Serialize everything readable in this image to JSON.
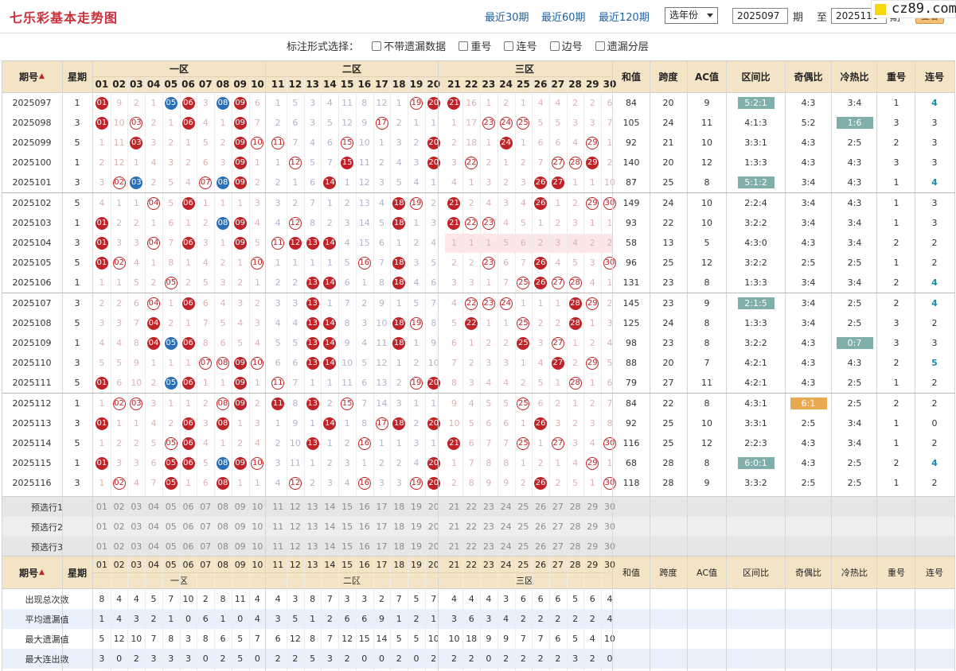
{
  "header": {
    "title": "七乐彩基本走势图",
    "links": [
      "最近30期",
      "最近60期",
      "最近120期"
    ],
    "year_select": "选年份",
    "start": "2025097",
    "mid": "期",
    "to": "至",
    "end": "2025116",
    "end_suffix": "期",
    "query": "查看",
    "watermark": "cz89.com"
  },
  "options": {
    "label": "标注形式选择：",
    "items": [
      "不带遗漏数据",
      "重号",
      "连号",
      "边号",
      "遗漏分层"
    ]
  },
  "table": {
    "head": {
      "period": "期号",
      "week": "星期",
      "zone1": "一区",
      "zone2": "二区",
      "zone3": "三区",
      "cols": [
        "和值",
        "跨度",
        "AC值",
        "区间比",
        "奇偶比",
        "冷热比",
        "重号",
        "连号"
      ]
    },
    "numbers": [
      "01",
      "02",
      "03",
      "04",
      "05",
      "06",
      "07",
      "08",
      "09",
      "10",
      "11",
      "12",
      "13",
      "14",
      "15",
      "16",
      "17",
      "18",
      "19",
      "20",
      "21",
      "22",
      "23",
      "24",
      "25",
      "26",
      "27",
      "28",
      "29",
      "30"
    ],
    "rows": [
      {
        "period": "2025097",
        "week": "1",
        "cells": [
          "01",
          "9",
          "2",
          "1",
          "05",
          "06",
          "3",
          "08",
          "09",
          "6",
          "1",
          "5",
          "3",
          "4",
          "11",
          "8",
          "12",
          "1",
          "19",
          "20",
          "21",
          "16",
          "1",
          "2",
          "1",
          "4",
          "4",
          "2",
          "2",
          "6"
        ],
        "stats": [
          "84",
          "20",
          "9",
          "5:2:1",
          "4:3",
          "3:4",
          "1",
          "4"
        ],
        "hi": {
          "3": "g"
        }
      },
      {
        "period": "2025098",
        "week": "3",
        "cells": [
          "01",
          "10",
          "03",
          "2",
          "1",
          "06",
          "4",
          "1",
          "09",
          "7",
          "2",
          "6",
          "3",
          "5",
          "12",
          "9",
          "17",
          "2",
          "1",
          "1",
          "1",
          "17",
          "23",
          "24",
          "25",
          "5",
          "5",
          "3",
          "3",
          "7"
        ],
        "stats": [
          "105",
          "24",
          "11",
          "4:1:3",
          "5:2",
          "1:6",
          "3",
          "3"
        ],
        "hi": {
          "5": "g"
        }
      },
      {
        "period": "2025099",
        "week": "5",
        "cells": [
          "1",
          "11",
          "03",
          "3",
          "2",
          "1",
          "5",
          "2",
          "09",
          "10",
          "11",
          "7",
          "4",
          "6",
          "15",
          "10",
          "1",
          "3",
          "2",
          "20",
          "2",
          "18",
          "1",
          "24",
          "1",
          "6",
          "6",
          "4",
          "29",
          "1"
        ],
        "stats": [
          "92",
          "21",
          "10",
          "3:3:1",
          "4:3",
          "2:5",
          "2",
          "3"
        ]
      },
      {
        "period": "2025100",
        "week": "1",
        "cells": [
          "2",
          "12",
          "1",
          "4",
          "3",
          "2",
          "6",
          "3",
          "09",
          "1",
          "1",
          "12",
          "5",
          "7",
          "15",
          "11",
          "2",
          "4",
          "3",
          "20",
          "3",
          "22",
          "2",
          "1",
          "2",
          "7",
          "27",
          "28",
          "29",
          "2"
        ],
        "stats": [
          "140",
          "20",
          "12",
          "1:3:3",
          "4:3",
          "4:3",
          "3",
          "3"
        ]
      },
      {
        "period": "2025101",
        "week": "3",
        "cells": [
          "3",
          "02",
          "03",
          "2",
          "5",
          "4",
          "07",
          "08",
          "09",
          "2",
          "2",
          "1",
          "6",
          "14",
          "1",
          "12",
          "3",
          "5",
          "4",
          "1",
          "4",
          "1",
          "3",
          "2",
          "3",
          "26",
          "27",
          "1",
          "1",
          "10"
        ],
        "stats": [
          "87",
          "25",
          "8",
          "5:1:2",
          "3:4",
          "4:3",
          "1",
          "4"
        ],
        "hi": {
          "3": "g"
        }
      },
      {
        "period": "2025102",
        "week": "5",
        "cells": [
          "4",
          "1",
          "1",
          "04",
          "5",
          "06",
          "1",
          "1",
          "1",
          "3",
          "3",
          "2",
          "7",
          "1",
          "2",
          "13",
          "4",
          "18",
          "19",
          "2",
          "21",
          "2",
          "4",
          "3",
          "4",
          "26",
          "1",
          "2",
          "29",
          "30"
        ],
        "stats": [
          "149",
          "24",
          "10",
          "2:2:4",
          "3:4",
          "4:3",
          "1",
          "3"
        ]
      },
      {
        "period": "2025103",
        "week": "1",
        "cells": [
          "01",
          "2",
          "2",
          "1",
          "6",
          "1",
          "2",
          "08",
          "09",
          "4",
          "4",
          "12",
          "8",
          "2",
          "3",
          "14",
          "5",
          "18",
          "1",
          "3",
          "21",
          "22",
          "23",
          "4",
          "5",
          "1",
          "2",
          "3",
          "1",
          "1"
        ],
        "stats": [
          "93",
          "22",
          "10",
          "3:2:2",
          "3:4",
          "3:4",
          "1",
          "3"
        ]
      },
      {
        "period": "2025104",
        "week": "3",
        "cells": [
          "01",
          "3",
          "3",
          "04",
          "7",
          "06",
          "3",
          "1",
          "09",
          "5",
          "11",
          "12",
          "13",
          "14",
          "4",
          "15",
          "6",
          "1",
          "2",
          "4",
          "1",
          "1",
          "1",
          "5",
          "6",
          "2",
          "3",
          "4",
          "2",
          "2"
        ],
        "stats": [
          "58",
          "13",
          "5",
          "4:3:0",
          "4:3",
          "3:4",
          "2",
          "2"
        ]
      },
      {
        "period": "2025105",
        "week": "5",
        "cells": [
          "01",
          "02",
          "4",
          "1",
          "8",
          "1",
          "4",
          "2",
          "1",
          "10",
          "1",
          "1",
          "1",
          "1",
          "5",
          "16",
          "7",
          "18",
          "3",
          "5",
          "2",
          "2",
          "23",
          "6",
          "7",
          "26",
          "4",
          "5",
          "3",
          "30"
        ],
        "stats": [
          "96",
          "25",
          "12",
          "3:2:2",
          "2:5",
          "2:5",
          "1",
          "2"
        ]
      },
      {
        "period": "2025106",
        "week": "1",
        "cells": [
          "1",
          "1",
          "5",
          "2",
          "05",
          "2",
          "5",
          "3",
          "2",
          "1",
          "2",
          "2",
          "13",
          "14",
          "6",
          "1",
          "8",
          "18",
          "4",
          "6",
          "3",
          "3",
          "1",
          "7",
          "25",
          "26",
          "27",
          "28",
          "4",
          "1"
        ],
        "stats": [
          "131",
          "23",
          "8",
          "1:3:3",
          "3:4",
          "3:4",
          "2",
          "4"
        ]
      },
      {
        "period": "2025107",
        "week": "3",
        "cells": [
          "2",
          "2",
          "6",
          "04",
          "1",
          "06",
          "6",
          "4",
          "3",
          "2",
          "3",
          "3",
          "13",
          "1",
          "7",
          "2",
          "9",
          "1",
          "5",
          "7",
          "4",
          "22",
          "23",
          "24",
          "1",
          "1",
          "1",
          "28",
          "29",
          "2"
        ],
        "stats": [
          "145",
          "23",
          "9",
          "2:1:5",
          "3:4",
          "2:5",
          "2",
          "4"
        ],
        "hi": {
          "3": "g"
        }
      },
      {
        "period": "2025108",
        "week": "5",
        "cells": [
          "3",
          "3",
          "7",
          "04",
          "2",
          "1",
          "7",
          "5",
          "4",
          "3",
          "4",
          "4",
          "13",
          "14",
          "8",
          "3",
          "10",
          "18",
          "19",
          "8",
          "5",
          "22",
          "1",
          "1",
          "25",
          "2",
          "2",
          "28",
          "1",
          "3"
        ],
        "stats": [
          "125",
          "24",
          "8",
          "1:3:3",
          "3:4",
          "2:5",
          "3",
          "2"
        ]
      },
      {
        "period": "2025109",
        "week": "1",
        "cells": [
          "4",
          "4",
          "8",
          "04",
          "05",
          "06",
          "8",
          "6",
          "5",
          "4",
          "5",
          "5",
          "13",
          "14",
          "9",
          "4",
          "11",
          "18",
          "1",
          "9",
          "6",
          "1",
          "2",
          "2",
          "25",
          "3",
          "27",
          "1",
          "2",
          "4"
        ],
        "stats": [
          "98",
          "23",
          "8",
          "3:2:2",
          "4:3",
          "0:7",
          "3",
          "3"
        ],
        "hi": {
          "5": "g"
        }
      },
      {
        "period": "2025110",
        "week": "3",
        "cells": [
          "5",
          "5",
          "9",
          "1",
          "1",
          "1",
          "07",
          "08",
          "09",
          "10",
          "6",
          "6",
          "13",
          "14",
          "10",
          "5",
          "12",
          "1",
          "2",
          "10",
          "7",
          "2",
          "3",
          "3",
          "1",
          "4",
          "27",
          "2",
          "29",
          "5"
        ],
        "stats": [
          "88",
          "20",
          "7",
          "4:2:1",
          "4:3",
          "4:3",
          "2",
          "5"
        ]
      },
      {
        "period": "2025111",
        "week": "5",
        "cells": [
          "01",
          "6",
          "10",
          "2",
          "05",
          "06",
          "1",
          "1",
          "09",
          "1",
          "11",
          "7",
          "1",
          "1",
          "11",
          "6",
          "13",
          "2",
          "19",
          "20",
          "8",
          "3",
          "4",
          "4",
          "2",
          "5",
          "1",
          "28",
          "1",
          "6"
        ],
        "stats": [
          "79",
          "27",
          "11",
          "4:2:1",
          "4:3",
          "2:5",
          "1",
          "2"
        ]
      },
      {
        "period": "2025112",
        "week": "1",
        "cells": [
          "1",
          "02",
          "03",
          "3",
          "1",
          "1",
          "2",
          "08",
          "09",
          "2",
          "11",
          "8",
          "13",
          "2",
          "15",
          "7",
          "14",
          "3",
          "1",
          "1",
          "9",
          "4",
          "5",
          "5",
          "25",
          "6",
          "2",
          "1",
          "2",
          "7"
        ],
        "stats": [
          "84",
          "22",
          "8",
          "4:3:1",
          "6:1",
          "2:5",
          "2",
          "2"
        ],
        "hi": {
          "4": "o"
        }
      },
      {
        "period": "2025113",
        "week": "3",
        "cells": [
          "01",
          "1",
          "1",
          "4",
          "2",
          "06",
          "3",
          "08",
          "1",
          "3",
          "1",
          "9",
          "1",
          "14",
          "1",
          "8",
          "17",
          "18",
          "2",
          "20",
          "10",
          "5",
          "6",
          "6",
          "1",
          "26",
          "3",
          "2",
          "3",
          "8"
        ],
        "stats": [
          "92",
          "25",
          "10",
          "3:3:1",
          "2:5",
          "3:4",
          "1",
          "0"
        ]
      },
      {
        "period": "2025114",
        "week": "5",
        "cells": [
          "1",
          "2",
          "2",
          "5",
          "05",
          "06",
          "4",
          "1",
          "2",
          "4",
          "2",
          "10",
          "13",
          "1",
          "2",
          "16",
          "1",
          "1",
          "3",
          "1",
          "21",
          "6",
          "7",
          "7",
          "25",
          "1",
          "27",
          "3",
          "4",
          "30"
        ],
        "stats": [
          "116",
          "25",
          "12",
          "2:2:3",
          "4:3",
          "3:4",
          "1",
          "2"
        ]
      },
      {
        "period": "2025115",
        "week": "1",
        "cells": [
          "01",
          "3",
          "3",
          "6",
          "05",
          "06",
          "5",
          "08",
          "09",
          "10",
          "3",
          "11",
          "1",
          "2",
          "3",
          "1",
          "2",
          "2",
          "4",
          "20",
          "1",
          "7",
          "8",
          "8",
          "1",
          "2",
          "1",
          "4",
          "29",
          "1"
        ],
        "stats": [
          "68",
          "28",
          "8",
          "6:0:1",
          "4:3",
          "2:5",
          "2",
          "4"
        ],
        "hi": {
          "3": "g"
        }
      },
      {
        "period": "2025116",
        "week": "3",
        "cells": [
          "1",
          "02",
          "4",
          "7",
          "05",
          "1",
          "6",
          "08",
          "1",
          "1",
          "4",
          "12",
          "2",
          "3",
          "4",
          "16",
          "3",
          "3",
          "19",
          "20",
          "2",
          "8",
          "9",
          "9",
          "2",
          "26",
          "2",
          "5",
          "1",
          "30"
        ],
        "stats": [
          "118",
          "28",
          "9",
          "3:3:2",
          "2:5",
          "2:5",
          "1",
          "2"
        ]
      }
    ],
    "pre_rows": [
      "预选行1",
      "预选行2",
      "预选行3"
    ],
    "foot": {
      "period": "期号",
      "week": "星期",
      "zone1": "一区",
      "zone2": "二区",
      "zone3": "三区",
      "cols": [
        "和值",
        "跨度",
        "AC值",
        "区间比",
        "奇偶比",
        "冷热比",
        "重号",
        "连号"
      ]
    },
    "summary": [
      {
        "label": "出现总次数",
        "vals": [
          "8",
          "4",
          "4",
          "5",
          "7",
          "10",
          "2",
          "8",
          "11",
          "4",
          "4",
          "3",
          "8",
          "7",
          "3",
          "3",
          "2",
          "7",
          "5",
          "7",
          "4",
          "4",
          "4",
          "3",
          "6",
          "6",
          "6",
          "5",
          "6",
          "4"
        ]
      },
      {
        "label": "平均遗漏值",
        "vals": [
          "1",
          "4",
          "3",
          "2",
          "1",
          "0",
          "6",
          "1",
          "0",
          "4",
          "3",
          "5",
          "1",
          "2",
          "6",
          "6",
          "9",
          "1",
          "2",
          "1",
          "3",
          "6",
          "3",
          "4",
          "2",
          "2",
          "2",
          "2",
          "2",
          "4"
        ]
      },
      {
        "label": "最大遗漏值",
        "vals": [
          "5",
          "12",
          "10",
          "7",
          "8",
          "3",
          "8",
          "6",
          "5",
          "7",
          "6",
          "12",
          "8",
          "7",
          "12",
          "15",
          "14",
          "5",
          "5",
          "10",
          "10",
          "18",
          "9",
          "9",
          "7",
          "7",
          "6",
          "5",
          "4",
          "10"
        ]
      },
      {
        "label": "最大连出数",
        "vals": [
          "3",
          "0",
          "2",
          "3",
          "3",
          "3",
          "0",
          "2",
          "5",
          "0",
          "2",
          "2",
          "5",
          "3",
          "2",
          "0",
          "0",
          "2",
          "0",
          "2",
          "2",
          "2",
          "0",
          "2",
          "2",
          "2",
          "2",
          "3",
          "2",
          "0"
        ]
      }
    ]
  },
  "colors": {
    "hit_red": "#c02327",
    "hit_blue": "#2b6fb7",
    "miss": "#dcb2b2",
    "header_bg": "#f3e4c6",
    "teal_tag": "#7faeab",
    "orange_tag": "#e9a951",
    "title": "#c8303a",
    "link": "#1f5f9f"
  }
}
